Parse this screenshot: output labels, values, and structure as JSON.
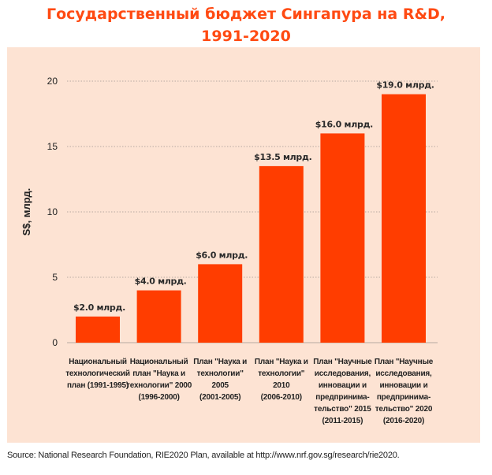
{
  "title_line1": "Государственный бюджет Сингапура на R&D,",
  "title_line2": "1991-2020",
  "source": "Source: National Research Foundation, RIE2020 Plan, available at http://www.nrf.gov.sg/research/rie2020.",
  "colors": {
    "bar": "#ff3d00",
    "panel": "#fde3d3",
    "title": "#ff4a12",
    "grid": "#b8aaa2"
  },
  "chart_data": {
    "type": "bar",
    "ylabel": "S$, млрд.",
    "ylim": [
      0,
      20
    ],
    "yticks": [
      0,
      5,
      10,
      15,
      20
    ],
    "grid": true,
    "categories": [
      [
        "Национальный",
        "технологический",
        "план (1991-1995)"
      ],
      [
        "Национальный",
        "план \"Наука и",
        "технологии\" 2000",
        "(1996-2000)"
      ],
      [
        "План \"Наука и",
        "технологии\"",
        "2005",
        "(2001-2005)"
      ],
      [
        "План \"Наука и",
        "технологии\"",
        "2010",
        "(2006-2010)"
      ],
      [
        "План \"Научные",
        "исследования,",
        "инновации и",
        "предпринима-",
        "тельство\" 2015",
        "(2011-2015)"
      ],
      [
        "План \"Научные",
        "исследования,",
        "инновации и",
        "предпринима-",
        "тельство\" 2020",
        "(2016-2020)"
      ]
    ],
    "values": [
      2.0,
      4.0,
      6.0,
      13.5,
      16.0,
      19.0
    ],
    "data_labels": [
      "$2.0 млрд.",
      "$4.0 млрд.",
      "$6.0 млрд.",
      "$13.5 млрд.",
      "$16.0 млрд.",
      "$19.0 млрд."
    ]
  }
}
